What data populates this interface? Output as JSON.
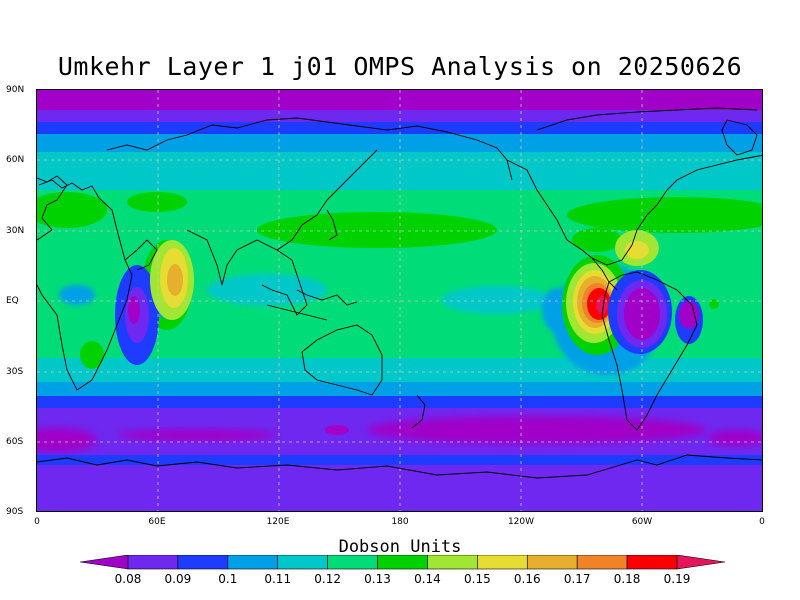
{
  "title": "Umkehr Layer 1 j01 OMPS Analysis on 20250626",
  "lat_labels": [
    "90N",
    "60N",
    "30N",
    "EQ",
    "30S",
    "60S",
    "90S"
  ],
  "lon_labels": [
    "0",
    "60E",
    "120E",
    "180",
    "120W",
    "60W",
    "0"
  ],
  "colorbar": {
    "title": "Dobson Units",
    "ticks": [
      "0.08",
      "0.09",
      "0.1",
      "0.11",
      "0.12",
      "0.13",
      "0.14",
      "0.15",
      "0.16",
      "0.17",
      "0.18",
      "0.19"
    ],
    "colors": [
      "#a000c8",
      "#6e28f0",
      "#1e3cff",
      "#00a0e6",
      "#00c8c8",
      "#00dc78",
      "#00d200",
      "#a0e632",
      "#e6dc32",
      "#e6af2d",
      "#f08228",
      "#fa0000",
      "#e6145a"
    ]
  }
}
